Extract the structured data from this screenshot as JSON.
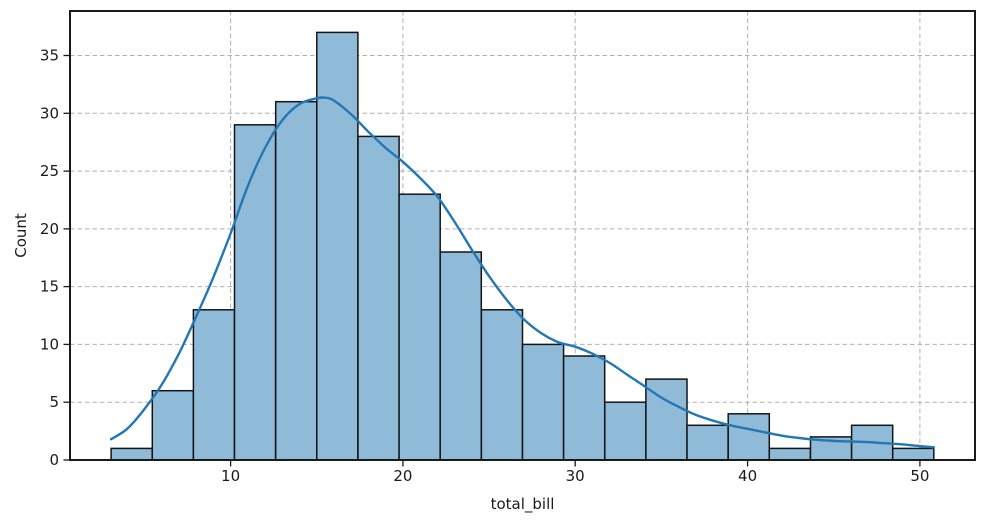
{
  "figure": {
    "background": "#ffffff"
  },
  "chart_data": {
    "type": "histogram",
    "title": "",
    "xlabel": "total_bill",
    "ylabel": "Count",
    "xlim": [
      0.683,
      53.197
    ],
    "ylim": [
      0,
      38.85
    ],
    "xticks": [
      10,
      20,
      30,
      40,
      50
    ],
    "yticks": [
      0,
      5,
      10,
      15,
      20,
      25,
      30,
      35
    ],
    "grid": {
      "on": true,
      "style": "dashed",
      "color": "#b0b0b0"
    },
    "legend": {
      "visible": false
    },
    "bin_edges": [
      3.07,
      5.457,
      7.844,
      10.231,
      12.618,
      15.005,
      17.392,
      19.779,
      22.166,
      24.553,
      26.94,
      29.327,
      31.714,
      34.101,
      36.488,
      38.875,
      41.262,
      43.649,
      46.036,
      48.423,
      50.81
    ],
    "counts": [
      1,
      6,
      13,
      29,
      31,
      37,
      28,
      23,
      18,
      13,
      10,
      9,
      5,
      7,
      3,
      4,
      1,
      2,
      3,
      1
    ],
    "kde_curve": {
      "x": [
        3.07,
        4,
        5,
        6,
        7,
        8,
        9,
        10,
        11,
        12,
        13,
        14,
        15,
        15.5,
        16,
        17,
        18,
        19,
        20,
        21,
        22,
        23,
        24,
        25,
        26,
        27,
        28,
        29,
        30,
        31,
        32,
        33,
        34,
        35,
        36,
        37,
        38,
        39,
        40,
        41,
        42,
        43,
        44,
        45,
        46,
        47,
        48,
        49,
        50,
        50.81
      ],
      "y": [
        1.8,
        2.7,
        4.4,
        6.5,
        9.2,
        12.4,
        15.8,
        19.6,
        23.7,
        27.0,
        29.4,
        30.8,
        31.3,
        31.35,
        31.1,
        29.9,
        28.4,
        27.0,
        25.8,
        24.4,
        22.8,
        20.6,
        18.2,
        15.9,
        13.9,
        12.2,
        11.0,
        10.2,
        9.8,
        9.2,
        8.4,
        7.4,
        6.4,
        5.4,
        4.6,
        3.9,
        3.4,
        3.0,
        2.7,
        2.4,
        2.1,
        1.9,
        1.75,
        1.65,
        1.6,
        1.55,
        1.45,
        1.35,
        1.2,
        1.1
      ]
    },
    "styles": {
      "bar_fill": "#8fbbd9",
      "bar_edge": "#141414",
      "kde_color": "#2277b4",
      "grid_color": "#b0b0b0",
      "axis_color": "#1a1a1a",
      "text_color": "#1a1a1a"
    }
  }
}
